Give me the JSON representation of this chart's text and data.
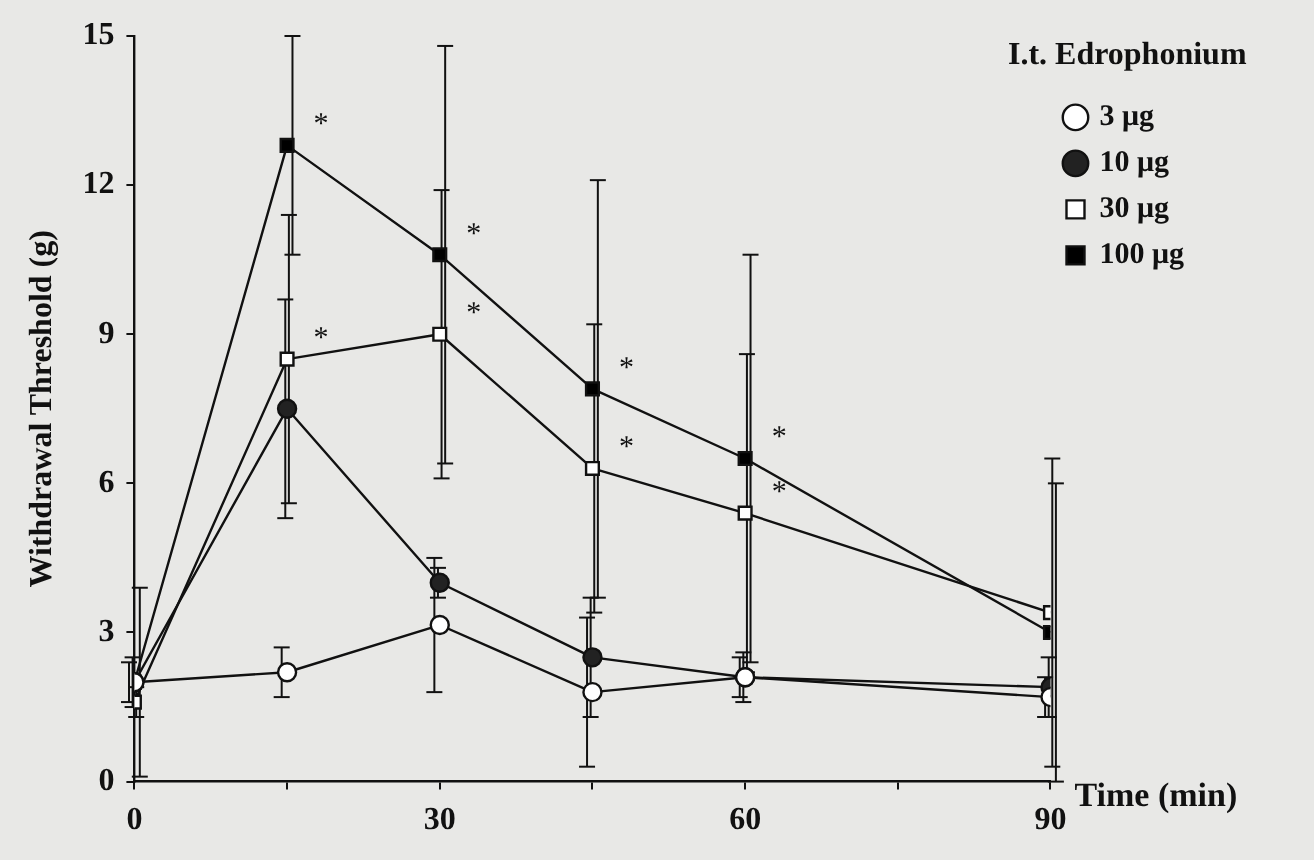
{
  "chart_data": {
    "type": "line",
    "xlabel": "Time (min)",
    "ylabel": "Withdrawal Threshold (g)",
    "legend_title": "I.t. Edrophonium",
    "legend": "top right",
    "grid": false,
    "x": [
      0,
      15,
      30,
      45,
      60,
      90
    ],
    "xlim": [
      0,
      90
    ],
    "xticks": [
      0,
      {
        "value": 15,
        "label": null
      },
      30,
      {
        "value": 45,
        "label": null
      },
      60,
      {
        "value": 75,
        "label": null
      },
      90
    ],
    "ylim": [
      0,
      15
    ],
    "yticks": [
      0,
      3,
      6,
      9,
      12,
      15
    ],
    "series": [
      {
        "name": "3 μg",
        "color": "#ffffff",
        "marker": "circle",
        "values": [
          2.0,
          2.2,
          3.15,
          1.8,
          2.1,
          1.7
        ],
        "errors": [
          0.4,
          0.5,
          1.35,
          1.5,
          0.4,
          0.4
        ]
      },
      {
        "name": "10 μg",
        "color": "#222222",
        "marker": "circle",
        "values": [
          2.0,
          7.5,
          4.0,
          2.5,
          2.1,
          1.9
        ],
        "errors": [
          0.5,
          2.2,
          0.3,
          1.2,
          0.5,
          0.6
        ]
      },
      {
        "name": "30 μg",
        "color": "#ffffff",
        "marker": "square",
        "values": [
          1.6,
          8.5,
          9.0,
          6.3,
          5.4,
          3.4
        ],
        "errors": [
          0.3,
          2.9,
          2.9,
          2.9,
          3.2,
          3.1
        ]
      },
      {
        "name": "100 μg",
        "color": "#000000",
        "marker": "square",
        "values": [
          2.0,
          12.8,
          10.6,
          7.9,
          6.5,
          3.0
        ],
        "errors": [
          1.9,
          2.2,
          4.2,
          4.2,
          4.1,
          3.0
        ]
      }
    ],
    "annotations": [
      {
        "text": "*",
        "x": 15,
        "y": 12.8
      },
      {
        "text": "*",
        "x": 30,
        "y": 10.6
      },
      {
        "text": "*",
        "x": 45,
        "y": 7.9
      },
      {
        "text": "*",
        "x": 60,
        "y": 6.5
      },
      {
        "text": "*",
        "x": 15,
        "y": 8.5
      },
      {
        "text": "*",
        "x": 30,
        "y": 9.0
      },
      {
        "text": "*",
        "x": 45,
        "y": 6.3
      },
      {
        "text": "*",
        "x": 60,
        "y": 5.4
      }
    ]
  }
}
